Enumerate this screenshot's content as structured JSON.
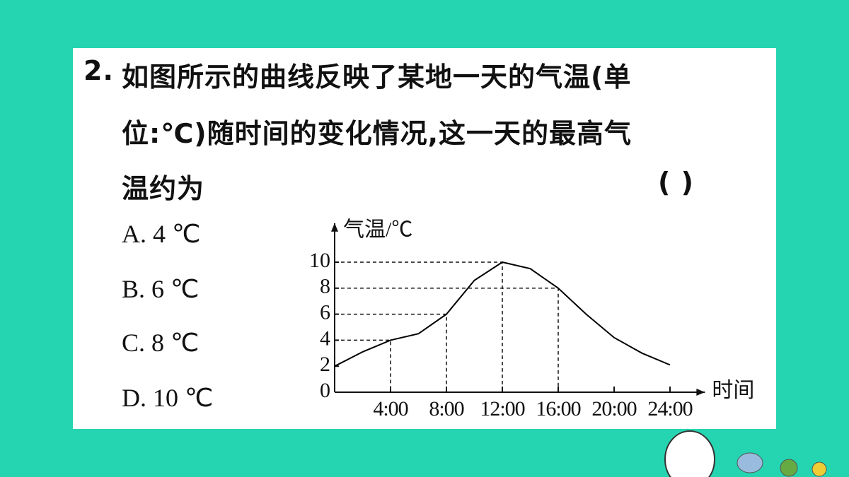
{
  "question": {
    "number": "2.",
    "lines": [
      "如图所示的曲线反映了某地一天的气温(单",
      "位:℃)随时间的变化情况,这一天的最高气",
      "温约为"
    ],
    "blank": "(      )"
  },
  "options": [
    "A. 4 ℃",
    "B. 6 ℃",
    "C. 8 ℃",
    "D. 10 ℃"
  ],
  "chart_data": {
    "type": "line",
    "y_label": "气温/℃",
    "x_label": "时间",
    "x": [
      0,
      2,
      4,
      6,
      8,
      10,
      12,
      14,
      16,
      18,
      20,
      22,
      24
    ],
    "values": [
      2,
      3.1,
      4,
      4.5,
      6,
      8.6,
      10,
      9.5,
      8,
      6,
      4.2,
      3,
      2.1
    ],
    "color": "#000000",
    "xlim": [
      0,
      26.5
    ],
    "ylim": [
      0,
      13
    ],
    "xticks": [
      {
        "value": 4,
        "label": "4:00"
      },
      {
        "value": 8,
        "label": "8:00"
      },
      {
        "value": 12,
        "label": "12:00"
      },
      {
        "value": 16,
        "label": "16:00"
      },
      {
        "value": 20,
        "label": "20:00"
      },
      {
        "value": 24,
        "label": "24:00"
      }
    ],
    "yticks": [
      0,
      2,
      4,
      6,
      8,
      10
    ]
  }
}
